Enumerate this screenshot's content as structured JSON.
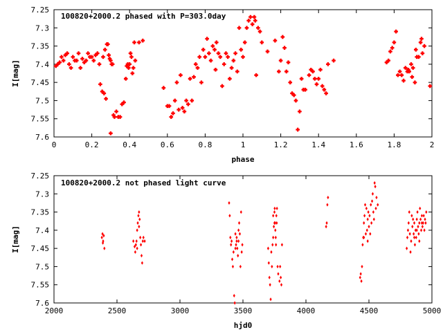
{
  "chart_data": [
    {
      "type": "scatter",
      "title": "100820+2000.2 phased with P=303.0day",
      "xlabel": "phase",
      "ylabel": "I[mag]",
      "xlim": [
        0,
        2
      ],
      "ylim": [
        7.25,
        7.6
      ],
      "y_inverted": true,
      "x_ticks": [
        0,
        0.2,
        0.4,
        0.6,
        0.8,
        1,
        1.2,
        1.4,
        1.6,
        1.8,
        2
      ],
      "x_tick_labels": [
        "0",
        "0.2",
        "0.4",
        "0.6",
        "0.8",
        "1",
        "1.2",
        "1.4",
        "1.6",
        "1.8",
        "2"
      ],
      "y_ticks": [
        7.25,
        7.3,
        7.35,
        7.4,
        7.45,
        7.5,
        7.55,
        7.6
      ],
      "y_tick_labels": [
        "7.25",
        "7.3",
        "7.35",
        "7.4",
        "7.45",
        "7.5",
        "7.55",
        "7.6"
      ],
      "grid": false,
      "marker_color": "#ff0000",
      "points": [
        [
          0.01,
          7.405
        ],
        [
          0.02,
          7.4
        ],
        [
          0.03,
          7.395
        ],
        [
          0.04,
          7.38
        ],
        [
          0.05,
          7.39
        ],
        [
          0.06,
          7.375
        ],
        [
          0.07,
          7.37
        ],
        [
          0.08,
          7.4
        ],
        [
          0.09,
          7.41
        ],
        [
          0.1,
          7.38
        ],
        [
          0.11,
          7.39
        ],
        [
          0.12,
          7.39
        ],
        [
          0.13,
          7.37
        ],
        [
          0.14,
          7.41
        ],
        [
          0.15,
          7.385
        ],
        [
          0.16,
          7.395
        ],
        [
          0.17,
          7.39
        ],
        [
          0.18,
          7.37
        ],
        [
          0.19,
          7.38
        ],
        [
          0.2,
          7.38
        ],
        [
          0.21,
          7.39
        ],
        [
          0.22,
          7.375
        ],
        [
          0.23,
          7.37
        ],
        [
          0.24,
          7.4
        ],
        [
          0.245,
          7.455
        ],
        [
          0.255,
          7.475
        ],
        [
          0.26,
          7.38
        ],
        [
          0.265,
          7.48
        ],
        [
          0.27,
          7.36
        ],
        [
          0.275,
          7.495
        ],
        [
          0.28,
          7.345
        ],
        [
          0.285,
          7.345
        ],
        [
          0.29,
          7.375
        ],
        [
          0.295,
          7.385
        ],
        [
          0.3,
          7.39
        ],
        [
          0.305,
          7.4
        ],
        [
          0.3,
          7.59
        ],
        [
          0.31,
          7.4
        ],
        [
          0.315,
          7.54
        ],
        [
          0.32,
          7.545
        ],
        [
          0.33,
          7.53
        ],
        [
          0.34,
          7.545
        ],
        [
          0.35,
          7.545
        ],
        [
          0.36,
          7.51
        ],
        [
          0.37,
          7.505
        ],
        [
          0.38,
          7.44
        ],
        [
          0.385,
          7.405
        ],
        [
          0.39,
          7.4
        ],
        [
          0.395,
          7.41
        ],
        [
          0.4,
          7.4
        ],
        [
          0.405,
          7.37
        ],
        [
          0.41,
          7.38
        ],
        [
          0.415,
          7.425
        ],
        [
          0.42,
          7.41
        ],
        [
          0.425,
          7.34
        ],
        [
          0.43,
          7.39
        ],
        [
          0.45,
          7.34
        ],
        [
          0.47,
          7.335
        ],
        [
          0.58,
          7.465
        ],
        [
          0.6,
          7.515
        ],
        [
          0.61,
          7.515
        ],
        [
          0.62,
          7.545
        ],
        [
          0.63,
          7.535
        ],
        [
          0.64,
          7.5
        ],
        [
          0.65,
          7.45
        ],
        [
          0.66,
          7.525
        ],
        [
          0.67,
          7.43
        ],
        [
          0.68,
          7.52
        ],
        [
          0.69,
          7.53
        ],
        [
          0.7,
          7.5
        ],
        [
          0.71,
          7.51
        ],
        [
          0.72,
          7.44
        ],
        [
          0.73,
          7.5
        ],
        [
          0.74,
          7.435
        ],
        [
          0.75,
          7.4
        ],
        [
          0.76,
          7.41
        ],
        [
          0.77,
          7.38
        ],
        [
          0.78,
          7.45
        ],
        [
          0.79,
          7.36
        ],
        [
          0.8,
          7.38
        ],
        [
          0.81,
          7.33
        ],
        [
          0.82,
          7.37
        ],
        [
          0.83,
          7.39
        ],
        [
          0.84,
          7.35
        ],
        [
          0.85,
          7.36
        ],
        [
          0.855,
          7.415
        ],
        [
          0.86,
          7.34
        ],
        [
          0.87,
          7.37
        ],
        [
          0.88,
          7.38
        ],
        [
          0.89,
          7.46
        ],
        [
          0.9,
          7.4
        ],
        [
          0.91,
          7.37
        ],
        [
          0.92,
          7.38
        ],
        [
          0.93,
          7.44
        ],
        [
          0.94,
          7.41
        ],
        [
          0.95,
          7.39
        ],
        [
          0.96,
          7.37
        ],
        [
          0.97,
          7.42
        ],
        [
          0.98,
          7.3
        ],
        [
          0.99,
          7.36
        ],
        [
          1.0,
          7.38
        ],
        [
          1.01,
          7.34
        ],
        [
          1.02,
          7.3
        ],
        [
          1.03,
          7.28
        ],
        [
          1.04,
          7.27
        ],
        [
          1.05,
          7.29
        ],
        [
          1.06,
          7.27
        ],
        [
          1.065,
          7.28
        ],
        [
          1.07,
          7.43
        ],
        [
          1.08,
          7.3
        ],
        [
          1.09,
          7.31
        ],
        [
          1.1,
          7.34
        ],
        [
          1.13,
          7.365
        ],
        [
          1.17,
          7.335
        ],
        [
          1.19,
          7.42
        ],
        [
          1.2,
          7.39
        ],
        [
          1.21,
          7.325
        ],
        [
          1.22,
          7.355
        ],
        [
          1.23,
          7.42
        ],
        [
          1.24,
          7.395
        ],
        [
          1.25,
          7.45
        ],
        [
          1.26,
          7.48
        ],
        [
          1.27,
          7.485
        ],
        [
          1.28,
          7.5
        ],
        [
          1.29,
          7.58
        ],
        [
          1.3,
          7.53
        ],
        [
          1.31,
          7.44
        ],
        [
          1.32,
          7.47
        ],
        [
          1.33,
          7.47
        ],
        [
          1.35,
          7.43
        ],
        [
          1.36,
          7.415
        ],
        [
          1.37,
          7.42
        ],
        [
          1.38,
          7.44
        ],
        [
          1.39,
          7.455
        ],
        [
          1.4,
          7.44
        ],
        [
          1.41,
          7.415
        ],
        [
          1.42,
          7.46
        ],
        [
          1.43,
          7.47
        ],
        [
          1.44,
          7.48
        ],
        [
          1.45,
          7.4
        ],
        [
          1.48,
          7.39
        ],
        [
          1.76,
          7.395
        ],
        [
          1.77,
          7.39
        ],
        [
          1.78,
          7.365
        ],
        [
          1.79,
          7.355
        ],
        [
          1.8,
          7.34
        ],
        [
          1.81,
          7.31
        ],
        [
          1.82,
          7.43
        ],
        [
          1.83,
          7.42
        ],
        [
          1.84,
          7.43
        ],
        [
          1.85,
          7.445
        ],
        [
          1.86,
          7.41
        ],
        [
          1.87,
          7.42
        ],
        [
          1.875,
          7.415
        ],
        [
          1.88,
          7.42
        ],
        [
          1.89,
          7.4
        ],
        [
          1.895,
          7.435
        ],
        [
          1.9,
          7.41
        ],
        [
          1.91,
          7.45
        ],
        [
          1.915,
          7.36
        ],
        [
          1.92,
          7.38
        ],
        [
          1.93,
          7.38
        ],
        [
          1.94,
          7.34
        ],
        [
          1.945,
          7.33
        ],
        [
          1.95,
          7.37
        ],
        [
          1.96,
          7.35
        ],
        [
          1.99,
          7.46
        ]
      ]
    },
    {
      "type": "scatter",
      "title": "100820+2000.2 not phased light curve",
      "xlabel": "hjd0",
      "ylabel": "I[mag]",
      "xlim": [
        2000,
        5000
      ],
      "ylim": [
        7.25,
        7.6
      ],
      "y_inverted": true,
      "x_ticks": [
        2000,
        2500,
        3000,
        3500,
        4000,
        4500,
        5000
      ],
      "x_tick_labels": [
        "2000",
        "2500",
        "3000",
        "3500",
        "4000",
        "4500",
        "5000"
      ],
      "y_ticks": [
        7.25,
        7.3,
        7.35,
        7.4,
        7.45,
        7.5,
        7.55,
        7.6
      ],
      "y_tick_labels": [
        "7.25",
        "7.3",
        "7.35",
        "7.4",
        "7.45",
        "7.5",
        "7.55",
        "7.6"
      ],
      "grid": false,
      "marker_color": "#ff0000",
      "points": [
        [
          2380,
          7.42
        ],
        [
          2385,
          7.41
        ],
        [
          2390,
          7.43
        ],
        [
          2395,
          7.415
        ],
        [
          2400,
          7.45
        ],
        [
          2388,
          7.435
        ],
        [
          2630,
          7.43
        ],
        [
          2640,
          7.445
        ],
        [
          2645,
          7.46
        ],
        [
          2650,
          7.44
        ],
        [
          2655,
          7.43
        ],
        [
          2660,
          7.45
        ],
        [
          2665,
          7.38
        ],
        [
          2670,
          7.36
        ],
        [
          2675,
          7.35
        ],
        [
          2680,
          7.37
        ],
        [
          2685,
          7.42
        ],
        [
          2690,
          7.44
        ],
        [
          2695,
          7.47
        ],
        [
          2700,
          7.49
        ],
        [
          2705,
          7.43
        ],
        [
          2710,
          7.42
        ],
        [
          2720,
          7.43
        ],
        [
          2660,
          7.4
        ],
        [
          2675,
          7.39
        ],
        [
          3390,
          7.325
        ],
        [
          3395,
          7.36
        ],
        [
          3400,
          7.42
        ],
        [
          3405,
          7.44
        ],
        [
          3410,
          7.43
        ],
        [
          3415,
          7.48
        ],
        [
          3420,
          7.5
        ],
        [
          3425,
          7.46
        ],
        [
          3430,
          7.58
        ],
        [
          3435,
          7.6
        ],
        [
          3440,
          7.45
        ],
        [
          3445,
          7.44
        ],
        [
          3450,
          7.43
        ],
        [
          3455,
          7.45
        ],
        [
          3460,
          7.47
        ],
        [
          3465,
          7.4
        ],
        [
          3470,
          7.38
        ],
        [
          3475,
          7.41
        ],
        [
          3480,
          7.5
        ],
        [
          3485,
          7.35
        ],
        [
          3490,
          7.46
        ],
        [
          3495,
          7.44
        ],
        [
          3440,
          7.41
        ],
        [
          3450,
          7.42
        ],
        [
          3465,
          7.43
        ],
        [
          3700,
          7.45
        ],
        [
          3705,
          7.49
        ],
        [
          3710,
          7.53
        ],
        [
          3715,
          7.55
        ],
        [
          3720,
          7.59
        ],
        [
          3725,
          7.46
        ],
        [
          3730,
          7.5
        ],
        [
          3735,
          7.44
        ],
        [
          3740,
          7.42
        ],
        [
          3745,
          7.39
        ],
        [
          3750,
          7.35
        ],
        [
          3752,
          7.34
        ],
        [
          3755,
          7.38
        ],
        [
          3757,
          7.4
        ],
        [
          3760,
          7.42
        ],
        [
          3762,
          7.44
        ],
        [
          3765,
          7.36
        ],
        [
          3768,
          7.38
        ],
        [
          3770,
          7.34
        ],
        [
          3775,
          7.5
        ],
        [
          3780,
          7.52
        ],
        [
          3790,
          7.54
        ],
        [
          3795,
          7.5
        ],
        [
          3800,
          7.53
        ],
        [
          3805,
          7.55
        ],
        [
          3810,
          7.44
        ],
        [
          3740,
          7.36
        ],
        [
          3750,
          7.38
        ],
        [
          4160,
          7.39
        ],
        [
          4165,
          7.38
        ],
        [
          4170,
          7.33
        ],
        [
          4175,
          7.31
        ],
        [
          4430,
          7.53
        ],
        [
          4435,
          7.52
        ],
        [
          4440,
          7.54
        ],
        [
          4445,
          7.5
        ],
        [
          4450,
          7.44
        ],
        [
          4455,
          7.42
        ],
        [
          4460,
          7.38
        ],
        [
          4465,
          7.36
        ],
        [
          4470,
          7.33
        ],
        [
          4475,
          7.41
        ],
        [
          4480,
          7.34
        ],
        [
          4485,
          7.4
        ],
        [
          4490,
          7.37
        ],
        [
          4495,
          7.35
        ],
        [
          4500,
          7.39
        ],
        [
          4505,
          7.36
        ],
        [
          4510,
          7.41
        ],
        [
          4515,
          7.33
        ],
        [
          4520,
          7.38
        ],
        [
          4525,
          7.32
        ],
        [
          4530,
          7.3
        ],
        [
          4535,
          7.35
        ],
        [
          4540,
          7.37
        ],
        [
          4545,
          7.27
        ],
        [
          4550,
          7.28
        ],
        [
          4555,
          7.34
        ],
        [
          4560,
          7.31
        ],
        [
          4570,
          7.33
        ],
        [
          4460,
          7.42
        ],
        [
          4490,
          7.43
        ],
        [
          4800,
          7.45
        ],
        [
          4805,
          7.42
        ],
        [
          4810,
          7.4
        ],
        [
          4815,
          7.38
        ],
        [
          4820,
          7.35
        ],
        [
          4825,
          7.41
        ],
        [
          4830,
          7.46
        ],
        [
          4835,
          7.43
        ],
        [
          4840,
          7.36
        ],
        [
          4845,
          7.39
        ],
        [
          4850,
          7.37
        ],
        [
          4855,
          7.41
        ],
        [
          4860,
          7.38
        ],
        [
          4865,
          7.44
        ],
        [
          4870,
          7.4
        ],
        [
          4875,
          7.42
        ],
        [
          4880,
          7.37
        ],
        [
          4885,
          7.35
        ],
        [
          4890,
          7.39
        ],
        [
          4895,
          7.41
        ],
        [
          4900,
          7.38
        ],
        [
          4905,
          7.34
        ],
        [
          4910,
          7.37
        ],
        [
          4915,
          7.4
        ],
        [
          4920,
          7.36
        ],
        [
          4925,
          7.39
        ],
        [
          4930,
          7.38
        ],
        [
          4935,
          7.36
        ],
        [
          4940,
          7.4
        ],
        [
          4945,
          7.37
        ],
        [
          4950,
          7.38
        ],
        [
          4955,
          7.35
        ],
        [
          4860,
          7.42
        ],
        [
          4880,
          7.4
        ],
        [
          4900,
          7.43
        ],
        [
          4920,
          7.38
        ]
      ]
    }
  ]
}
